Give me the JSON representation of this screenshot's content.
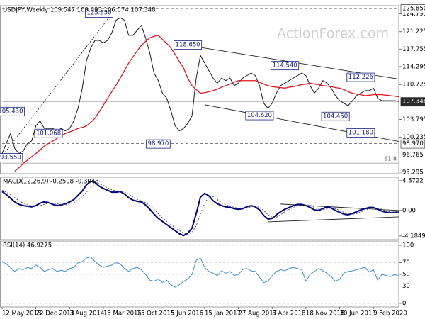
{
  "chart_data": [
    {
      "type": "line",
      "title": "USDJPY,Weekly  109.547 109.693 106.574 107.348",
      "watermark": "ActionForex.com",
      "xlim": [
        0,
        94
      ],
      "ylim": [
        93.0,
        126.4
      ],
      "yticks": [
        93.295,
        96.765,
        100.235,
        103.795,
        110.725,
        114.295,
        117.755,
        121.225,
        124.795
      ],
      "levels": [
        {
          "value": 125.85,
          "label": "125.850",
          "style": "dashed"
        },
        {
          "value": 98.97,
          "label": "98.970",
          "style": "dashed"
        },
        {
          "value": 107.348,
          "style": "current"
        }
      ],
      "fib": {
        "text": "61.8",
        "level": 95.1
      },
      "annotations": [
        {
          "value": 125.85,
          "label": "125.850"
        },
        {
          "value": 118.65,
          "label": "118.650"
        },
        {
          "value": 114.54,
          "label": "114.540"
        },
        {
          "value": 112.226,
          "label": "112.226"
        },
        {
          "value": 105.43,
          "label": "105.430"
        },
        {
          "value": 104.62,
          "label": "104.620"
        },
        {
          "value": 104.45,
          "label": "104.450"
        },
        {
          "value": 101.068,
          "label": "101.068"
        },
        {
          "value": 101.18,
          "label": "101.180"
        },
        {
          "value": 98.97,
          "label": "98.970"
        },
        {
          "value": 93.55,
          "label": "93.550"
        }
      ],
      "trendlines": [
        {
          "x": [
            47,
            94
          ],
          "y": [
            118.1,
            111.8
          ],
          "style": "solid"
        },
        {
          "x": [
            48,
            94
          ],
          "y": [
            106.7,
            99.4
          ],
          "style": "solid"
        },
        {
          "x": [
            0.3,
            27
          ],
          "y": [
            96.8,
            125.85
          ],
          "style": "dotted"
        }
      ],
      "series": [
        {
          "color": "#1a1a1a",
          "width": 1,
          "values": [
            97,
            99,
            101,
            98,
            97,
            97.5,
            99,
            99.5,
            102.5,
            103.5,
            102,
            102,
            102,
            101.5,
            102,
            101.5,
            102,
            103.5,
            106,
            110,
            115.5,
            118,
            119.5,
            119.5,
            119,
            119.5,
            121,
            123.5,
            124,
            123.5,
            120.5,
            120.5,
            121.5,
            122.5,
            120,
            117,
            113,
            111.5,
            109,
            108,
            105.5,
            102.5,
            101.5,
            102,
            103,
            104.5,
            112,
            116.5,
            115,
            113.5,
            112,
            111,
            112,
            111.5,
            112,
            110.5,
            111,
            112,
            112.5,
            113,
            112.5,
            110.5,
            107,
            106,
            107,
            109,
            110.5,
            111,
            111.5,
            112,
            112.5,
            113,
            112.5,
            110.5,
            109,
            110,
            111.5,
            111,
            110,
            108.5,
            107.5,
            107,
            106.5,
            107.5,
            108.5,
            109,
            109.5,
            109.5,
            110,
            108,
            107.5,
            107.5,
            107.5,
            107.5,
            107.348
          ]
        },
        {
          "color": "#e8141e",
          "width": 1.3,
          "values": [
            null,
            null,
            null,
            93.5,
            94.2,
            95,
            95.7,
            96.4,
            97,
            97.7,
            98.5,
            99,
            99.5,
            100,
            100.5,
            101,
            101.3,
            101.6,
            102,
            102.2,
            102.5,
            103.2,
            104,
            105.3,
            106.6,
            108,
            109.3,
            110.6,
            112,
            113.5,
            115,
            116.2,
            117.4,
            118.5,
            119.3,
            120,
            120.3,
            120.5,
            119.7,
            118.9,
            118,
            116.7,
            115.3,
            114,
            112,
            110.5,
            109.7,
            109,
            109.1,
            109.3,
            109.5,
            109.8,
            110.2,
            110.5,
            110.8,
            111.2,
            111.5,
            111.5,
            111.5,
            111.5,
            111.5,
            111.2,
            110.8,
            110.5,
            110.3,
            110.2,
            110.1,
            110,
            110.2,
            110.3,
            110.5,
            110.7,
            110.8,
            111,
            110.8,
            110.7,
            110.5,
            110.4,
            110.3,
            110.1,
            110,
            109.7,
            109.3,
            109,
            108.8,
            108.7,
            108.5,
            108.6,
            108.7,
            108.7,
            108.7,
            108.6,
            108.5,
            108.4,
            108.3
          ]
        }
      ]
    },
    {
      "type": "line",
      "title": "MACD(12,26,9) -0.2508 -0.3048",
      "xlim": [
        0,
        94
      ],
      "ylim": [
        -4.77,
        5.45
      ],
      "yticks": [
        -4.1849,
        {
          "value": 0,
          "label": "0.00"
        },
        4.8722
      ],
      "trendlines": [
        {
          "x": [
            66,
            94
          ],
          "y": [
            1.05,
            0.0
          ],
          "style": "solid"
        },
        {
          "x": [
            63,
            94
          ],
          "y": [
            -1.86,
            -1.05
          ],
          "style": "solid"
        }
      ],
      "series": [
        {
          "color": "#000080",
          "width": 2,
          "values": [
            3.1,
            2.6,
            2.0,
            1.4,
            1.0,
            0.8,
            0.7,
            0.6,
            0.8,
            1.2,
            1.4,
            1.3,
            1.0,
            0.8,
            0.9,
            1.1,
            1.4,
            1.8,
            2.5,
            3.2,
            4.2,
            4.8,
            4.6,
            4.0,
            3.6,
            3.3,
            3.0,
            3.0,
            3.1,
            2.7,
            2.1,
            1.7,
            1.5,
            1.4,
            0.9,
            0.2,
            -0.6,
            -1.3,
            -1.8,
            -2.3,
            -2.8,
            -3.3,
            -3.8,
            -4.1,
            -3.7,
            -2.9,
            -0.5,
            2.2,
            2.8,
            2.4,
            1.6,
            1.1,
            0.8,
            0.6,
            0.5,
            0.3,
            0.2,
            0.3,
            0.6,
            0.8,
            0.6,
            0.1,
            -0.8,
            -1.4,
            -1.3,
            -0.7,
            -0.2,
            0.2,
            0.5,
            0.8,
            1.0,
            1.0,
            0.8,
            0.5,
            0.1,
            0,
            0.3,
            0.6,
            0.4,
            0,
            -0.3,
            -0.6,
            -0.7,
            -0.5,
            -0.2,
            0.1,
            0.3,
            0.5,
            0.5,
            0.2,
            -0.1,
            -0.3,
            -0.35,
            -0.3,
            -0.2508
          ]
        },
        {
          "color": "#555555",
          "width": 1,
          "dash": "dotted",
          "values": [
            3.3,
            3.0,
            2.6,
            2.1,
            1.6,
            1.2,
            1.0,
            0.8,
            0.7,
            0.8,
            1.0,
            1.2,
            1.2,
            1.1,
            1.0,
            0.9,
            1.1,
            1.3,
            1.7,
            2.3,
            3.0,
            3.8,
            4.3,
            4.4,
            4.1,
            3.7,
            3.4,
            3.2,
            3.1,
            3.0,
            2.7,
            2.2,
            1.8,
            1.6,
            1.3,
            0.8,
            0.2,
            -0.5,
            -1.2,
            -1.8,
            -2.3,
            -2.8,
            -3.3,
            -3.7,
            -3.9,
            -3.6,
            -2.5,
            -0.6,
            1.2,
            2.2,
            2.3,
            1.8,
            1.3,
            0.9,
            0.7,
            0.5,
            0.4,
            0.3,
            0.4,
            0.6,
            0.7,
            0.5,
            0,
            -0.7,
            -1.1,
            -1.1,
            -0.7,
            -0.2,
            0.2,
            0.5,
            0.8,
            0.9,
            0.9,
            0.8,
            0.5,
            0.2,
            0.1,
            0.3,
            0.4,
            0.3,
            0,
            -0.3,
            -0.5,
            -0.6,
            -0.5,
            -0.2,
            0,
            0.3,
            0.4,
            0.4,
            0.2,
            -0.1,
            -0.25,
            -0.3,
            -0.3048
          ]
        }
      ]
    },
    {
      "type": "line",
      "title": "RSI(14) 46.9275",
      "xlim": [
        0,
        94
      ],
      "ylim": [
        -6.1,
        107.3
      ],
      "yticks": [
        0,
        30,
        50,
        70,
        100
      ],
      "grid": true,
      "xticks": [
        {
          "value": 0,
          "label": "12 May 2013"
        },
        {
          "value": 8,
          "label": "22 Dec 2013"
        },
        {
          "value": 16,
          "label": "3 Aug 2014"
        },
        {
          "value": 24,
          "label": "15 Mar 2015"
        },
        {
          "value": 32,
          "label": "25 Oct 2015"
        },
        {
          "value": 40,
          "label": "5 Jun 2016"
        },
        {
          "value": 48,
          "label": "15 Jan 2017"
        },
        {
          "value": 56,
          "label": "27 Aug 2017"
        },
        {
          "value": 64,
          "label": "8 Apr 2018"
        },
        {
          "value": 72,
          "label": "18 Nov 2018"
        },
        {
          "value": 80,
          "label": "30 Jun 2019"
        },
        {
          "value": 88,
          "label": "9 Feb 2020"
        }
      ],
      "series": [
        {
          "color": "#3c8fd6",
          "width": 1,
          "values": [
            72,
            68,
            62,
            55,
            60,
            58,
            62,
            60,
            66,
            62,
            55,
            58,
            60,
            55,
            57,
            55,
            60,
            62,
            70,
            72,
            78,
            80,
            72,
            66,
            62,
            64,
            66,
            70,
            68,
            60,
            55,
            60,
            62,
            58,
            50,
            40,
            38,
            42,
            36,
            40,
            32,
            28,
            32,
            38,
            42,
            50,
            74,
            78,
            62,
            55,
            52,
            48,
            56,
            52,
            55,
            48,
            50,
            58,
            60,
            56,
            55,
            45,
            36,
            38,
            48,
            55,
            58,
            56,
            60,
            62,
            60,
            58,
            38,
            50,
            55,
            60,
            56,
            52,
            46,
            38,
            42,
            52,
            55,
            56,
            58,
            60,
            62,
            54,
            58,
            40,
            50,
            48,
            46,
            50,
            46.9275
          ]
        }
      ]
    }
  ]
}
